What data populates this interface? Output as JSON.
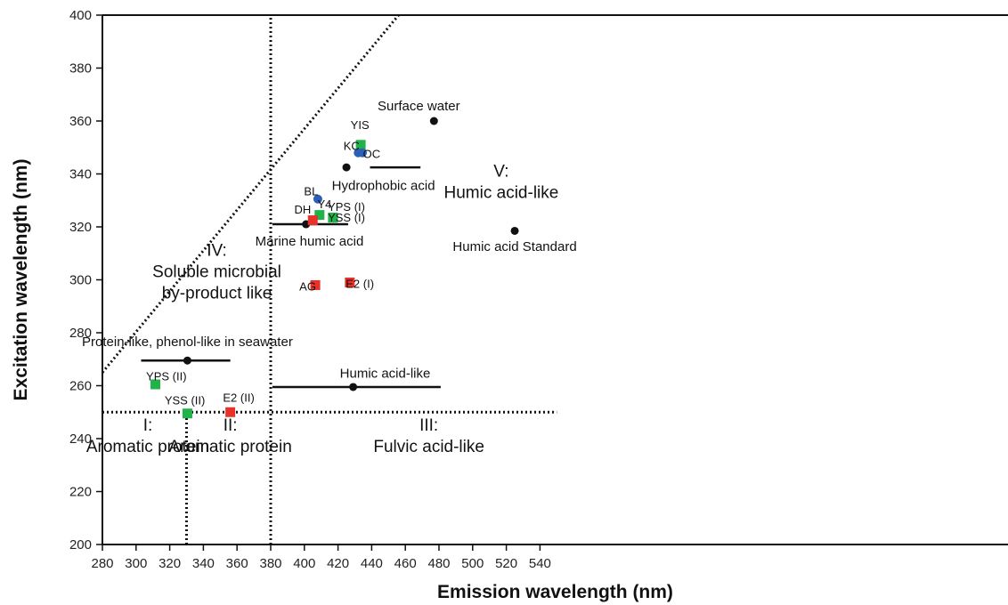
{
  "chart_data": {
    "type": "scatter",
    "xlabel": "Emission wavelength (nm)",
    "ylabel": "Excitation wavelength (nm)",
    "xlim": [
      280,
      550
    ],
    "ylim": [
      200,
      400
    ],
    "xticks": [
      280,
      300,
      320,
      340,
      360,
      380,
      400,
      420,
      440,
      460,
      480,
      500,
      520,
      540
    ],
    "yticks": [
      200,
      220,
      240,
      260,
      280,
      300,
      320,
      340,
      360,
      380,
      400
    ],
    "boundaries": [
      {
        "x1": 280,
        "y1": 250,
        "x2": 550,
        "y2": 250,
        "style": "dotted"
      },
      {
        "x1": 380,
        "y1": 200,
        "x2": 380,
        "y2": 400,
        "style": "dotted"
      },
      {
        "x1": 330,
        "y1": 200,
        "x2": 330,
        "y2": 250,
        "style": "dotted"
      },
      {
        "x1": 280,
        "y1": 265,
        "x2": 456,
        "y2": 400,
        "style": "dotted"
      }
    ],
    "regions": [
      {
        "lines": [
          "I:",
          "Aromatic protein"
        ],
        "x": 307,
        "y": 243
      },
      {
        "lines": [
          "II:",
          "Aromatic protein"
        ],
        "x": 356,
        "y": 243
      },
      {
        "lines": [
          "III:",
          "Fulvic acid-like"
        ],
        "x": 474,
        "y": 243
      },
      {
        "lines": [
          "IV:",
          "Soluble microbial",
          "by-product like"
        ],
        "x": 348,
        "y": 309
      },
      {
        "lines": [
          "V:",
          "Humic acid-like"
        ],
        "x": 517,
        "y": 339
      }
    ],
    "reference_ranges": [
      {
        "label": "Protein-like, phenol-like in seawater",
        "x_start": 303,
        "x_end": 356,
        "y": 269.5,
        "center_x": 330.5,
        "label_x": 330.5,
        "label_y": 275
      },
      {
        "label": "Humic acid-like",
        "x_start": 381,
        "x_end": 481,
        "y": 259.5,
        "center_x": 429,
        "label_x": 448,
        "label_y": 263
      },
      {
        "label": "Marine humic acid",
        "x_start": 381,
        "x_end": 426,
        "y": 321,
        "center_x": 401,
        "label_x": 403,
        "label_y": 313
      },
      {
        "label": "Hydrophobic acid",
        "x_start": 439,
        "x_end": 469,
        "y": 342.5,
        "center_x": 425,
        "label_x": 447,
        "label_y": 334
      }
    ],
    "reference_points": [
      {
        "label": "Surface water",
        "x": 477,
        "y": 360,
        "label_x": 468,
        "label_y": 364
      },
      {
        "label": "Humic acid Standard",
        "x": 525,
        "y": 318.5,
        "label_x": 525,
        "label_y": 311
      }
    ],
    "series": [
      {
        "name": "green",
        "color": "#1fb34a",
        "marker": "square",
        "points": [
          {
            "label": "YIS",
            "x": 433.5,
            "y": 351,
            "label_x": 433,
            "label_y": 357
          },
          {
            "label": "Y4",
            "x": 409,
            "y": 324.5,
            "label_x": 412,
            "label_y": 327
          },
          {
            "label": "YPS (I)",
            "x": 417,
            "y": 323.5,
            "label_x": 425,
            "label_y": 326
          },
          {
            "label": "YSS (I)",
            "x": 417,
            "y": 323.5,
            "label_x": 425,
            "label_y": 322
          },
          {
            "label": "YPS (II)",
            "x": 311.5,
            "y": 260.5,
            "label_x": 318,
            "label_y": 262
          },
          {
            "label": "YSS (II)",
            "x": 330.5,
            "y": 249.5,
            "label_x": 329,
            "label_y": 253
          }
        ]
      },
      {
        "name": "blue",
        "color": "#2b5fb8",
        "marker": "circle",
        "points": [
          {
            "label": "KC",
            "x": 432,
            "y": 348,
            "label_x": 428,
            "label_y": 349
          },
          {
            "label": "OC",
            "x": 434.5,
            "y": 348,
            "label_x": 440,
            "label_y": 346
          },
          {
            "label": "BL",
            "x": 408,
            "y": 330.5,
            "label_x": 404,
            "label_y": 332
          }
        ]
      },
      {
        "name": "red",
        "color": "#e8312b",
        "marker": "square",
        "points": [
          {
            "label": "DH",
            "x": 405,
            "y": 322.5,
            "label_x": 399,
            "label_y": 325
          },
          {
            "label": "AG",
            "x": 406.5,
            "y": 298,
            "label_x": 402,
            "label_y": 296
          },
          {
            "label": "E2 (I)",
            "x": 427,
            "y": 299,
            "label_x": 433,
            "label_y": 297
          },
          {
            "label": "E2 (II)",
            "x": 356,
            "y": 250,
            "label_x": 361,
            "label_y": 254
          }
        ]
      }
    ]
  }
}
